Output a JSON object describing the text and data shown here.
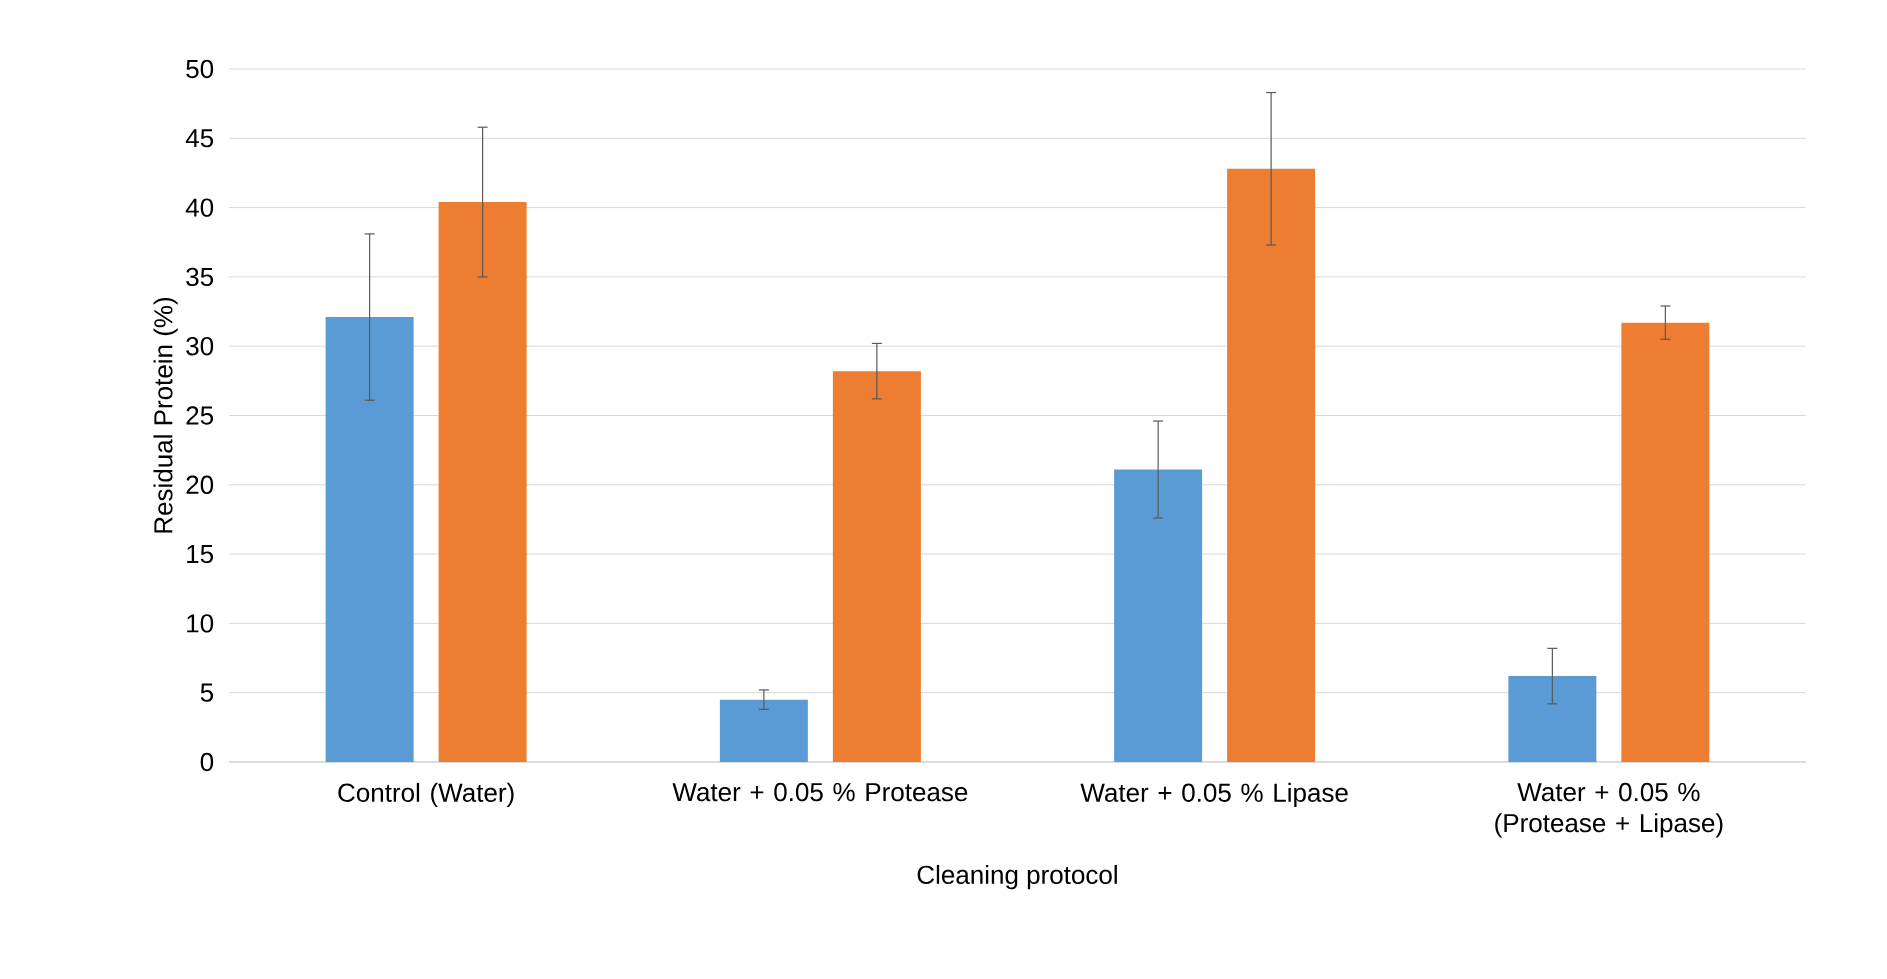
{
  "chart_data": {
    "type": "bar",
    "xlabel": "Cleaning protocol",
    "ylabel": "Residual Protein (%)",
    "categories": [
      "Control (Water)",
      "Water + 0.05 % Protease",
      "Water + 0.05 % Lipase",
      "Water + 0.05 % (Protease + Lipase)"
    ],
    "series": [
      {
        "color": "#5b9bd5",
        "values": [
          32.1,
          4.5,
          21.1,
          6.2
        ],
        "errors": [
          6,
          0.7,
          3.5,
          2
        ]
      },
      {
        "color": "#ed7d31",
        "values": [
          40.4,
          28.2,
          42.8,
          31.7
        ],
        "errors": [
          5.4,
          2,
          5.5,
          1.2
        ]
      }
    ],
    "ylim": [
      0,
      50
    ],
    "yticks": [
      0,
      5,
      10,
      15,
      20,
      25,
      30,
      35,
      40,
      45,
      50
    ],
    "grid": "y"
  }
}
